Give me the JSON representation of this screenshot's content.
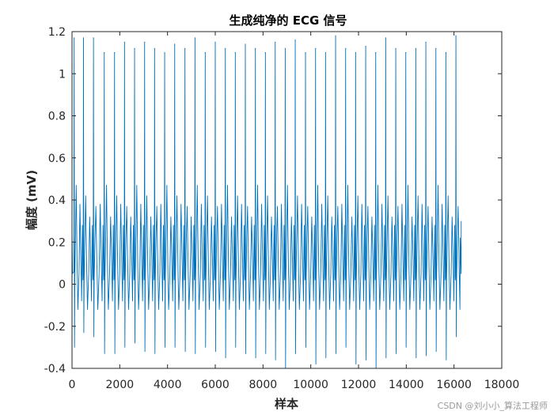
{
  "chart_data": {
    "type": "line",
    "title": "生成纯净的 ECG 信号",
    "xlabel": "样本",
    "ylabel": "幅度 (mV)",
    "xlim": [
      0,
      18000
    ],
    "ylim": [
      -0.4,
      1.2
    ],
    "xticks": [
      "0",
      "2000",
      "4000",
      "6000",
      "8000",
      "10000",
      "12000",
      "14000",
      "16000",
      "18000"
    ],
    "yticks": [
      "-0.4",
      "-0.2",
      "0",
      "0.2",
      "0.4",
      "0.6",
      "0.8",
      "1",
      "1.2"
    ],
    "grid": false,
    "line_color": "#0072BD",
    "series": [
      {
        "n_samples": 16300,
        "r_peak_x": [
          90,
          480,
          900,
          1350,
          1780,
          2200,
          2620,
          3040,
          3460,
          3880,
          4300,
          4730,
          5150,
          5580,
          6000,
          6420,
          6840,
          7260,
          7680,
          8100,
          8510,
          8930,
          9350,
          9780,
          10200,
          10620,
          11040,
          11460,
          11880,
          12300,
          12720,
          13140,
          13560,
          13980,
          14400,
          14820,
          15240,
          15660,
          16080
        ],
        "r_peak_y": [
          1.17,
          1.17,
          1.17,
          1.1,
          1.1,
          1.15,
          1.12,
          1.15,
          1.12,
          1.1,
          1.14,
          1.12,
          1.17,
          1.1,
          1.15,
          1.12,
          1.1,
          1.14,
          1.12,
          1.1,
          1.15,
          1.12,
          1.16,
          1.1,
          1.12,
          1.1,
          1.18,
          1.12,
          1.1,
          1.13,
          1.1,
          1.17,
          1.12,
          1.1,
          1.12,
          1.15,
          1.12,
          1.1,
          1.18
        ],
        "s_trough_y": [
          -0.3,
          -0.23,
          -0.25,
          -0.33,
          -0.33,
          -0.3,
          -0.28,
          -0.32,
          -0.33,
          -0.3,
          -0.3,
          -0.32,
          -0.33,
          -0.3,
          -0.32,
          -0.35,
          -0.3,
          -0.33,
          -0.35,
          -0.33,
          -0.36,
          -0.4,
          -0.33,
          -0.3,
          -0.38,
          -0.35,
          -0.33,
          -0.3,
          -0.38,
          -0.36,
          -0.4,
          -0.35,
          -0.33,
          -0.3,
          -0.35,
          -0.34,
          -0.32,
          -0.36,
          -0.25
        ],
        "t_wave_peak_y": 0.47,
        "p_wave_peak_y": 0.38,
        "baseline_min_y": -0.12
      }
    ]
  },
  "watermark": "CSDN @刘小小_算法工程师"
}
